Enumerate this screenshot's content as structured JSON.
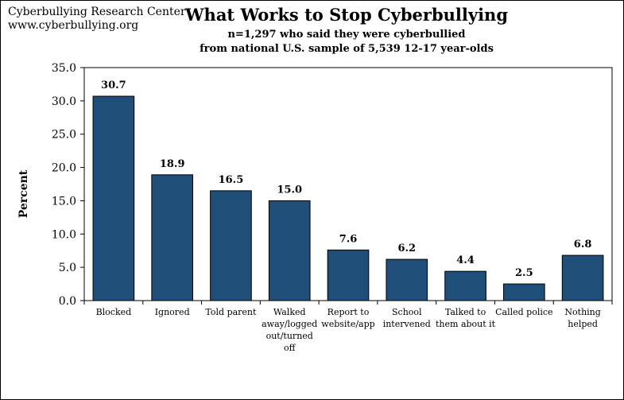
{
  "source": {
    "line1": "Cyberbullying Research Center",
    "line2": "www.cyberbullying.org"
  },
  "chart_data": {
    "type": "bar",
    "title": "What Works to Stop Cyberbullying",
    "subtitle_line1": "n=1,297  who said they were cyberbullied",
    "subtitle_line2": "from national U.S. sample of 5,539 12-17 year-olds",
    "xlabel": "",
    "ylabel": "Percent",
    "ylim": [
      0,
      35
    ],
    "yticks": [
      "0.0",
      "5.0",
      "10.0",
      "15.0",
      "20.0",
      "25.0",
      "30.0",
      "35.0"
    ],
    "grid": false,
    "legend": "none",
    "bar_color": "#1f4e79",
    "categories": [
      [
        "Blocked"
      ],
      [
        "Ignored"
      ],
      [
        "Told parent"
      ],
      [
        "Walked",
        "away/logged",
        "out/turned",
        "off"
      ],
      [
        "Report to",
        "website/app"
      ],
      [
        "School",
        "intervened"
      ],
      [
        "Talked to",
        "them about it"
      ],
      [
        "Called police"
      ],
      [
        "Nothing",
        "helped"
      ]
    ],
    "values": [
      30.7,
      18.9,
      16.5,
      15.0,
      7.6,
      6.2,
      4.4,
      2.5,
      6.8
    ],
    "value_labels": [
      "30.7",
      "18.9",
      "16.5",
      "15.0",
      "7.6",
      "6.2",
      "4.4",
      "2.5",
      "6.8"
    ]
  }
}
